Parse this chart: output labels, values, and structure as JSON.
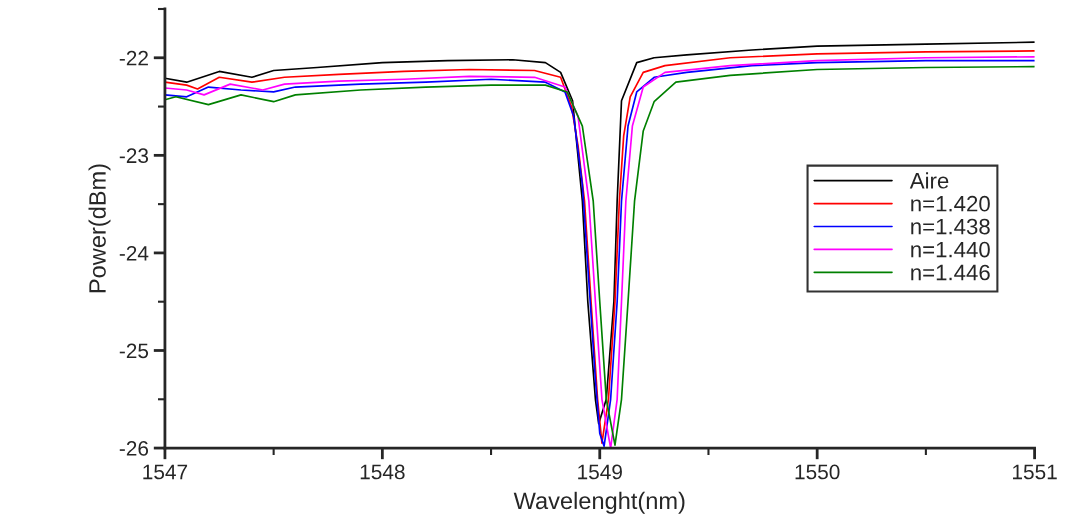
{
  "chart_data": {
    "type": "line",
    "xlabel": "Wavelenght(nm)",
    "ylabel": "Power(dBm)",
    "xlim": [
      1547,
      1551
    ],
    "xticks": [
      1547,
      1548,
      1549,
      1550,
      1551
    ],
    "ylim": [
      -26,
      -21.5
    ],
    "yticks": [
      -26,
      -25,
      -24,
      -23,
      -22
    ],
    "grid": false,
    "legend": "right",
    "marker": "none",
    "line_style": "solid",
    "series": [
      {
        "name": "Aire",
        "color": "#000000",
        "x": [
          1547.0,
          1547.1,
          1547.25,
          1547.4,
          1547.5,
          1547.7,
          1548.0,
          1548.3,
          1548.6,
          1548.75,
          1548.82,
          1548.875,
          1548.92,
          1548.945,
          1548.98,
          1548.995,
          1549.03,
          1549.065,
          1549.08,
          1549.1,
          1549.17,
          1549.25,
          1549.4,
          1549.7,
          1550.0,
          1550.5,
          1551.0
        ],
        "values": [
          -22.21,
          -22.25,
          -22.14,
          -22.2,
          -22.13,
          -22.1,
          -22.05,
          -22.03,
          -22.02,
          -22.05,
          -22.15,
          -22.44,
          -23.47,
          -24.5,
          -25.5,
          -25.75,
          -25.5,
          -24.5,
          -23.47,
          -22.44,
          -22.05,
          -22.0,
          -21.97,
          -21.92,
          -21.88,
          -21.86,
          -21.84
        ]
      },
      {
        "name": "n=1.420",
        "color": "#ff0000",
        "x": [
          1547.0,
          1547.1,
          1547.15,
          1547.25,
          1547.4,
          1547.55,
          1547.8,
          1548.1,
          1548.4,
          1548.7,
          1548.82,
          1548.87,
          1548.9,
          1548.93,
          1548.96,
          1548.99,
          1549.01,
          1549.04,
          1549.07,
          1549.09,
          1549.11,
          1549.14,
          1549.2,
          1549.3,
          1549.6,
          1550.0,
          1550.5,
          1551.0
        ],
        "values": [
          -22.25,
          -22.28,
          -22.32,
          -22.2,
          -22.25,
          -22.2,
          -22.17,
          -22.14,
          -22.12,
          -22.13,
          -22.2,
          -22.5,
          -22.9,
          -23.47,
          -24.5,
          -25.5,
          -25.95,
          -25.5,
          -24.5,
          -23.47,
          -22.8,
          -22.4,
          -22.15,
          -22.08,
          -22.0,
          -21.96,
          -21.94,
          -21.93
        ]
      },
      {
        "name": "n=1.438",
        "color": "#0000ff",
        "x": [
          1547.0,
          1547.1,
          1547.2,
          1547.35,
          1547.5,
          1547.6,
          1547.9,
          1548.2,
          1548.5,
          1548.75,
          1548.84,
          1548.88,
          1548.92,
          1548.95,
          1548.98,
          1549.0,
          1549.02,
          1549.05,
          1549.08,
          1549.1,
          1549.13,
          1549.17,
          1549.25,
          1549.4,
          1549.7,
          1550.0,
          1550.5,
          1551.0
        ],
        "values": [
          -22.38,
          -22.4,
          -22.3,
          -22.33,
          -22.35,
          -22.3,
          -22.27,
          -22.25,
          -22.22,
          -22.25,
          -22.35,
          -22.6,
          -23.3,
          -24.3,
          -25.3,
          -25.85,
          -25.98,
          -25.5,
          -24.5,
          -23.47,
          -22.7,
          -22.35,
          -22.2,
          -22.15,
          -22.08,
          -22.05,
          -22.03,
          -22.03
        ]
      },
      {
        "name": "n=1.440",
        "color": "#ff00ff",
        "x": [
          1547.0,
          1547.1,
          1547.18,
          1547.3,
          1547.45,
          1547.55,
          1547.8,
          1548.1,
          1548.4,
          1548.7,
          1548.84,
          1548.9,
          1548.95,
          1548.98,
          1549.01,
          1549.05,
          1549.08,
          1549.1,
          1549.12,
          1549.15,
          1549.2,
          1549.3,
          1549.6,
          1550.0,
          1550.5,
          1551.0
        ],
        "values": [
          -22.31,
          -22.33,
          -22.38,
          -22.27,
          -22.33,
          -22.27,
          -22.24,
          -22.22,
          -22.19,
          -22.2,
          -22.3,
          -22.6,
          -23.47,
          -24.5,
          -25.5,
          -26.0,
          -25.5,
          -24.5,
          -23.47,
          -22.7,
          -22.3,
          -22.15,
          -22.08,
          -22.03,
          -22.0,
          -21.99
        ]
      },
      {
        "name": "n=1.446",
        "color": "#008000",
        "x": [
          1547.0,
          1547.05,
          1547.2,
          1547.35,
          1547.5,
          1547.6,
          1547.9,
          1548.2,
          1548.5,
          1548.75,
          1548.85,
          1548.92,
          1548.97,
          1549.0,
          1549.03,
          1549.07,
          1549.1,
          1549.13,
          1549.16,
          1549.2,
          1549.25,
          1549.35,
          1549.6,
          1550.0,
          1550.5,
          1551.0
        ],
        "values": [
          -22.43,
          -22.4,
          -22.48,
          -22.38,
          -22.45,
          -22.38,
          -22.33,
          -22.3,
          -22.28,
          -22.28,
          -22.35,
          -22.7,
          -23.47,
          -24.5,
          -25.5,
          -25.97,
          -25.5,
          -24.5,
          -23.47,
          -22.75,
          -22.45,
          -22.25,
          -22.18,
          -22.12,
          -22.1,
          -22.09
        ]
      }
    ]
  }
}
